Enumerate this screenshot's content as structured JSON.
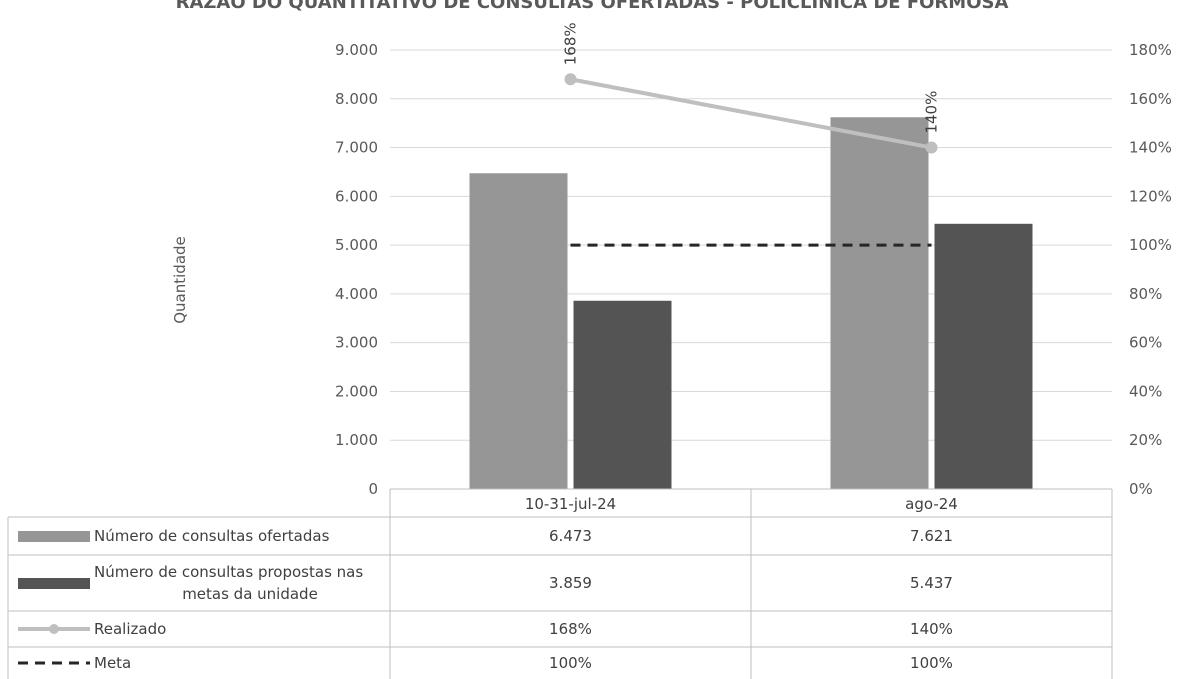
{
  "chart_data": {
    "type": "bar",
    "title": "RAZÃO DO QUANTITATIVO DE CONSULTAS OFERTADAS - POLICLÍNICA DE FORMOSA",
    "ylabel": "Quantidade",
    "categories": [
      "10-31-jul-24",
      "ago-24"
    ],
    "ylim": [
      0,
      9000
    ],
    "y2lim": [
      0,
      180
    ],
    "yticks": [
      "0",
      "1.000",
      "2.000",
      "3.000",
      "4.000",
      "5.000",
      "6.000",
      "7.000",
      "8.000",
      "9.000"
    ],
    "y2ticks": [
      "0%",
      "20%",
      "40%",
      "60%",
      "80%",
      "100%",
      "120%",
      "140%",
      "160%",
      "180%"
    ],
    "grid": true,
    "legend": "data-table",
    "series": [
      {
        "name": "Número de consultas ofertadas",
        "kind": "bar",
        "axis": "left",
        "color": "#969696",
        "values": [
          6473,
          7621
        ],
        "labels": [
          "6.473",
          "7.621"
        ]
      },
      {
        "name": "Número de consultas propostas nas metas da unidade",
        "kind": "bar",
        "axis": "left",
        "color": "#545454",
        "values": [
          3859,
          5437
        ],
        "labels": [
          "3.859",
          "5.437"
        ]
      },
      {
        "name": "Realizado",
        "kind": "line",
        "axis": "right",
        "color": "#bfbfbf",
        "values": [
          168,
          140
        ],
        "labels": [
          "168%",
          "140%"
        ]
      },
      {
        "name": "Meta",
        "kind": "dashed-line",
        "axis": "right",
        "color": "#262626",
        "values": [
          100,
          100
        ],
        "labels": [
          "100%",
          "100%"
        ]
      }
    ]
  }
}
